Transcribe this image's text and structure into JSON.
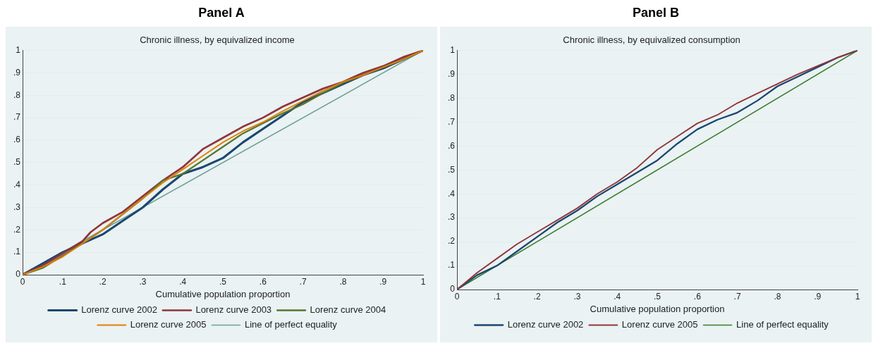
{
  "chart_data": [
    {
      "type": "line",
      "title": "Panel A",
      "subtitle": "Chronic illness, by equivalized income",
      "xlabel": "Cumulative population proportion",
      "xlim": [
        0,
        1
      ],
      "ylim": [
        0,
        1
      ],
      "xticks": [
        {
          "value": 0,
          "label": "0"
        },
        {
          "value": 0.1,
          "label": ".1"
        },
        {
          "value": 0.2,
          "label": ".2"
        },
        {
          "value": 0.3,
          "label": ".3"
        },
        {
          "value": 0.4,
          "label": ".4"
        },
        {
          "value": 0.5,
          "label": ".5"
        },
        {
          "value": 0.6,
          "label": ".6"
        },
        {
          "value": 0.7,
          "label": ".7"
        },
        {
          "value": 0.8,
          "label": ".8"
        },
        {
          "value": 0.9,
          "label": ".9"
        },
        {
          "value": 1,
          "label": "1"
        }
      ],
      "yticks": [
        {
          "value": 0,
          "label": "0"
        },
        {
          "value": 0.1,
          "label": ".1"
        },
        {
          "value": 0.2,
          "label": ".2"
        },
        {
          "value": 0.3,
          "label": ".3"
        },
        {
          "value": 0.4,
          "label": ".4"
        },
        {
          "value": 0.5,
          "label": ".5"
        },
        {
          "value": 0.6,
          "label": ".6"
        },
        {
          "value": 0.7,
          "label": ".7"
        },
        {
          "value": 0.8,
          "label": ".8"
        },
        {
          "value": 0.9,
          "label": ".9"
        },
        {
          "value": 1,
          "label": "1"
        }
      ],
      "grid": "y",
      "legend": "bottom",
      "marker": "none",
      "line_style": "solid",
      "series": [
        {
          "name": "Lorenz curve 2002",
          "color": "#1a476f",
          "x": [
            0,
            0.05,
            0.1,
            0.15,
            0.2,
            0.25,
            0.3,
            0.35,
            0.4,
            0.45,
            0.5,
            0.55,
            0.6,
            0.65,
            0.7,
            0.75,
            0.8,
            0.85,
            0.9,
            0.95,
            1
          ],
          "values": [
            0,
            0.05,
            0.1,
            0.14,
            0.18,
            0.24,
            0.3,
            0.38,
            0.45,
            0.48,
            0.52,
            0.59,
            0.65,
            0.71,
            0.77,
            0.81,
            0.85,
            0.89,
            0.92,
            0.96,
            1
          ]
        },
        {
          "name": "Lorenz curve 2003",
          "color": "#90353b",
          "x": [
            0,
            0.05,
            0.1,
            0.15,
            0.17,
            0.2,
            0.25,
            0.3,
            0.35,
            0.4,
            0.45,
            0.5,
            0.55,
            0.6,
            0.65,
            0.7,
            0.75,
            0.8,
            0.85,
            0.9,
            0.95,
            1
          ],
          "values": [
            0,
            0.04,
            0.095,
            0.15,
            0.19,
            0.23,
            0.28,
            0.35,
            0.42,
            0.48,
            0.56,
            0.61,
            0.66,
            0.7,
            0.75,
            0.79,
            0.83,
            0.86,
            0.9,
            0.93,
            0.97,
            1
          ]
        },
        {
          "name": "Lorenz curve 2004",
          "color": "#55752f",
          "x": [
            0,
            0.05,
            0.1,
            0.15,
            0.2,
            0.25,
            0.3,
            0.35,
            0.4,
            0.45,
            0.5,
            0.55,
            0.6,
            0.65,
            0.7,
            0.75,
            0.8,
            0.85,
            0.9,
            0.95,
            1
          ],
          "values": [
            0,
            0.03,
            0.085,
            0.14,
            0.2,
            0.27,
            0.34,
            0.42,
            0.45,
            0.51,
            0.57,
            0.63,
            0.675,
            0.72,
            0.76,
            0.81,
            0.855,
            0.89,
            0.925,
            0.96,
            1
          ]
        },
        {
          "name": "Lorenz curve 2005",
          "color": "#e37e00",
          "x": [
            0,
            0.05,
            0.1,
            0.15,
            0.2,
            0.25,
            0.3,
            0.35,
            0.4,
            0.45,
            0.5,
            0.55,
            0.6,
            0.65,
            0.7,
            0.75,
            0.8,
            0.85,
            0.9,
            0.95,
            1
          ],
          "values": [
            0,
            0.035,
            0.08,
            0.14,
            0.2,
            0.27,
            0.34,
            0.41,
            0.47,
            0.53,
            0.59,
            0.64,
            0.68,
            0.73,
            0.775,
            0.82,
            0.86,
            0.89,
            0.925,
            0.96,
            1
          ]
        },
        {
          "name": "Line of perfect equality",
          "color": "#6e9e94",
          "x": [
            0,
            1
          ],
          "values": [
            0,
            1
          ]
        }
      ]
    },
    {
      "type": "line",
      "title": "Panel B",
      "subtitle": "Chronic illness, by equivalized consumption",
      "xlabel": "Cumulative population proportion",
      "xlim": [
        0,
        1
      ],
      "ylim": [
        0,
        1
      ],
      "xticks": [
        {
          "value": 0,
          "label": "0"
        },
        {
          "value": 0.1,
          "label": ".1"
        },
        {
          "value": 0.2,
          "label": ".2"
        },
        {
          "value": 0.3,
          "label": ".3"
        },
        {
          "value": 0.4,
          "label": ".4"
        },
        {
          "value": 0.5,
          "label": ".5"
        },
        {
          "value": 0.6,
          "label": ".6"
        },
        {
          "value": 0.7,
          "label": ".7"
        },
        {
          "value": 0.8,
          "label": ".8"
        },
        {
          "value": 0.9,
          "label": ".9"
        },
        {
          "value": 1,
          "label": "1"
        }
      ],
      "yticks": [
        {
          "value": 0,
          "label": "0"
        },
        {
          "value": 0.1,
          "label": ".1"
        },
        {
          "value": 0.2,
          "label": ".2"
        },
        {
          "value": 0.3,
          "label": ".3"
        },
        {
          "value": 0.4,
          "label": ".4"
        },
        {
          "value": 0.5,
          "label": ".5"
        },
        {
          "value": 0.6,
          "label": ".6"
        },
        {
          "value": 0.7,
          "label": ".7"
        },
        {
          "value": 0.8,
          "label": ".8"
        },
        {
          "value": 0.9,
          "label": ".9"
        },
        {
          "value": 1,
          "label": "1"
        }
      ],
      "grid": "y",
      "legend": "bottom",
      "marker": "none",
      "line_style": "solid",
      "series": [
        {
          "name": "Lorenz curve 2002",
          "color": "#1a476f",
          "x": [
            0,
            0.05,
            0.1,
            0.15,
            0.2,
            0.25,
            0.3,
            0.35,
            0.4,
            0.45,
            0.5,
            0.55,
            0.6,
            0.65,
            0.7,
            0.75,
            0.8,
            0.85,
            0.9,
            0.95,
            1
          ],
          "values": [
            0,
            0.06,
            0.1,
            0.16,
            0.22,
            0.28,
            0.33,
            0.39,
            0.44,
            0.49,
            0.54,
            0.61,
            0.67,
            0.71,
            0.74,
            0.79,
            0.85,
            0.89,
            0.93,
            0.97,
            1
          ]
        },
        {
          "name": "Lorenz curve 2005",
          "color": "#90353b",
          "x": [
            0,
            0.05,
            0.1,
            0.15,
            0.2,
            0.25,
            0.3,
            0.35,
            0.4,
            0.45,
            0.5,
            0.55,
            0.6,
            0.65,
            0.7,
            0.75,
            0.8,
            0.85,
            0.9,
            0.95,
            1
          ],
          "values": [
            0,
            0.07,
            0.13,
            0.19,
            0.24,
            0.29,
            0.34,
            0.4,
            0.45,
            0.51,
            0.585,
            0.64,
            0.695,
            0.73,
            0.78,
            0.82,
            0.86,
            0.9,
            0.935,
            0.97,
            1
          ]
        },
        {
          "name": "Line of perfect equality",
          "color": "#3a7a2a",
          "x": [
            0,
            1
          ],
          "values": [
            0,
            1
          ]
        }
      ]
    }
  ]
}
